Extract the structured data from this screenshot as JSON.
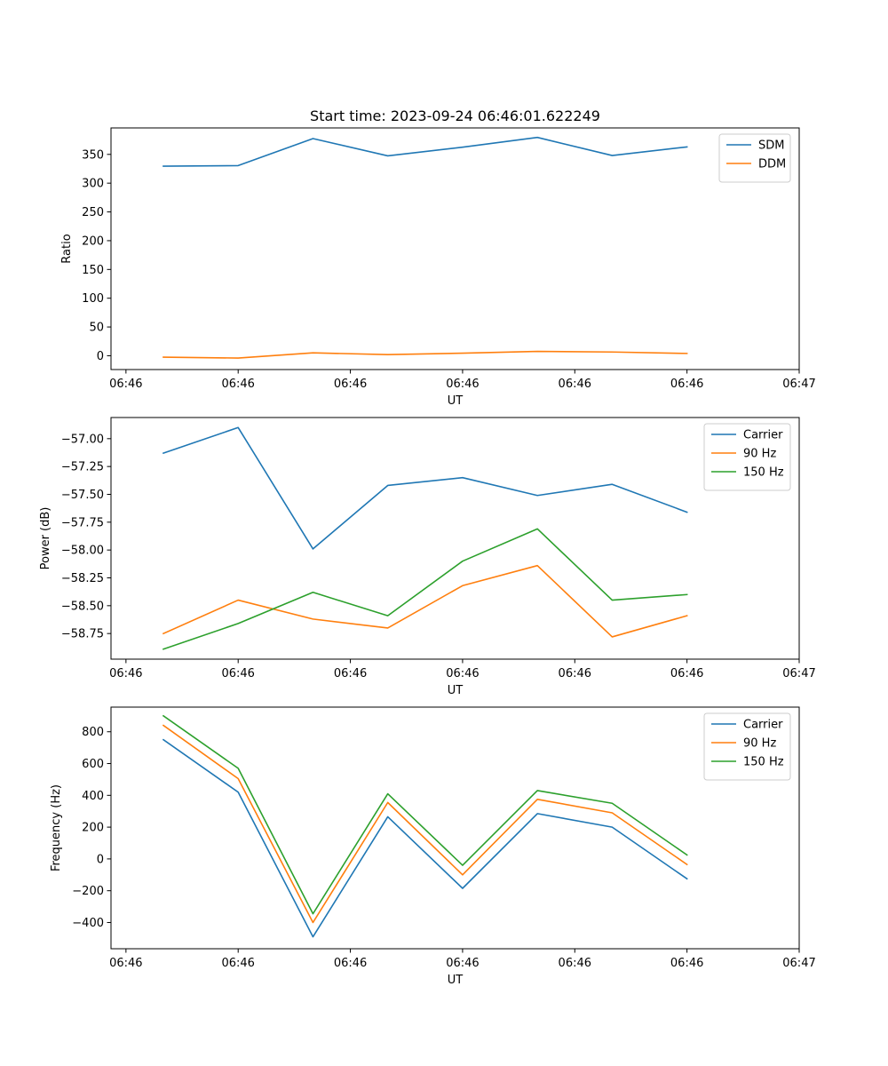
{
  "figure_title": "Start time: 2023-09-24 06:46:01.622249",
  "chart_data": [
    {
      "type": "line",
      "title": "Start time: 2023-09-24 06:46:01.622249",
      "xlabel": "UT",
      "ylabel": "Ratio",
      "x": [
        0.5,
        1.5,
        2.5,
        3.5,
        4.5,
        5.5,
        6.5,
        7.5
      ],
      "xlim": [
        -0.2,
        9.0
      ],
      "ylim": [
        -24,
        396
      ],
      "xticks": [
        0,
        1.5,
        3,
        4.5,
        6,
        7.5,
        9
      ],
      "xtick_labels": [
        "06:46",
        "06:46",
        "06:46",
        "06:46",
        "06:46",
        "06:46",
        "06:47"
      ],
      "yticks": [
        0,
        50,
        100,
        150,
        200,
        250,
        300,
        350
      ],
      "ytick_labels": [
        "0",
        "50",
        "100",
        "150",
        "200",
        "250",
        "300",
        "350"
      ],
      "legend_position": "top-right",
      "series": [
        {
          "name": "SDM",
          "color": "#1f77b4",
          "values": [
            329.5,
            330.5,
            377.5,
            347.5,
            362.5,
            379.5,
            348.0,
            363.0
          ]
        },
        {
          "name": "DDM",
          "color": "#ff7f0e",
          "values": [
            -2.5,
            -4.0,
            5.0,
            2.0,
            4.5,
            7.5,
            6.5,
            4.0
          ]
        }
      ]
    },
    {
      "type": "line",
      "xlabel": "UT",
      "ylabel": "Power (dB)",
      "x": [
        0.5,
        1.5,
        2.5,
        3.5,
        4.5,
        5.5,
        6.5,
        7.5
      ],
      "xlim": [
        -0.2,
        9.0
      ],
      "ylim": [
        -58.98,
        -56.81
      ],
      "xticks": [
        0,
        1.5,
        3,
        4.5,
        6,
        7.5,
        9
      ],
      "xtick_labels": [
        "06:46",
        "06:46",
        "06:46",
        "06:46",
        "06:46",
        "06:46",
        "06:47"
      ],
      "yticks": [
        -58.75,
        -58.5,
        -58.25,
        -58.0,
        -57.75,
        -57.5,
        -57.25,
        -57.0
      ],
      "ytick_labels": [
        "−58.75",
        "−58.50",
        "−58.25",
        "−58.00",
        "−57.75",
        "−57.50",
        "−57.25",
        "−57.00"
      ],
      "legend_position": "top-right",
      "series": [
        {
          "name": "Carrier",
          "color": "#1f77b4",
          "values": [
            -57.13,
            -56.9,
            -57.99,
            -57.42,
            -57.35,
            -57.51,
            -57.41,
            -57.66
          ]
        },
        {
          "name": "90 Hz",
          "color": "#ff7f0e",
          "values": [
            -58.75,
            -58.45,
            -58.62,
            -58.7,
            -58.32,
            -58.14,
            -58.78,
            -58.59
          ]
        },
        {
          "name": "150 Hz",
          "color": "#2ca02c",
          "values": [
            -58.89,
            -58.66,
            -58.38,
            -58.59,
            -58.1,
            -57.81,
            -58.45,
            -58.4
          ]
        }
      ]
    },
    {
      "type": "line",
      "xlabel": "UT",
      "ylabel": "Frequency (Hz)",
      "x": [
        0.5,
        1.5,
        2.5,
        3.5,
        4.5,
        5.5,
        6.5,
        7.5
      ],
      "xlim": [
        -0.2,
        9.0
      ],
      "ylim": [
        -565,
        955
      ],
      "xticks": [
        0,
        1.5,
        3,
        4.5,
        6,
        7.5,
        9
      ],
      "xtick_labels": [
        "06:46",
        "06:46",
        "06:46",
        "06:46",
        "06:46",
        "06:46",
        "06:47"
      ],
      "yticks": [
        -400,
        -200,
        0,
        200,
        400,
        600,
        800
      ],
      "ytick_labels": [
        "−400",
        "−200",
        "0",
        "200",
        "400",
        "600",
        "800"
      ],
      "legend_position": "top-right",
      "series": [
        {
          "name": "Carrier",
          "color": "#1f77b4",
          "values": [
            750,
            420,
            -490,
            265,
            -185,
            285,
            200,
            -125
          ]
        },
        {
          "name": "90 Hz",
          "color": "#ff7f0e",
          "values": [
            840,
            505,
            -400,
            355,
            -100,
            375,
            290,
            -35
          ]
        },
        {
          "name": "150 Hz",
          "color": "#2ca02c",
          "values": [
            900,
            570,
            -345,
            410,
            -40,
            430,
            350,
            25
          ]
        }
      ]
    }
  ]
}
